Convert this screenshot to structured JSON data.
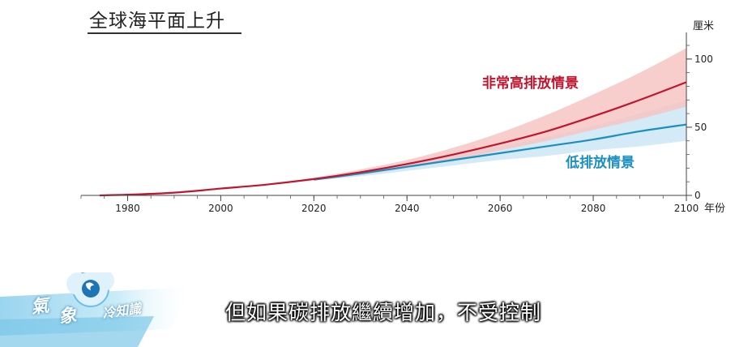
{
  "chart_data": {
    "type": "line",
    "title": "全球海平面上升",
    "ylabel": "厘米",
    "xlabel": "年份",
    "xlim": [
      1970,
      2100
    ],
    "ylim": [
      0,
      110
    ],
    "x_ticks": [
      1980,
      2000,
      2020,
      2040,
      2060,
      2080,
      2100
    ],
    "x_tick_labels": [
      "1980",
      "2000",
      "2020",
      "2040",
      "2060",
      "2080",
      "2100"
    ],
    "y_ticks": [
      0,
      50,
      100
    ],
    "y_tick_labels": [
      "0",
      "50",
      "100"
    ],
    "grid": false,
    "series": [
      {
        "name": "非常高排放情景",
        "color": "#c0152f",
        "band_color": "#f6c5c3",
        "x": [
          1974,
          1980,
          1990,
          2000,
          2010,
          2020,
          2030,
          2040,
          2050,
          2060,
          2070,
          2080,
          2090,
          2100
        ],
        "y": [
          0,
          0.5,
          2,
          5,
          8,
          12,
          17,
          23,
          30,
          38,
          47,
          58,
          70,
          83
        ],
        "upper": [
          0,
          0.5,
          2,
          5,
          8,
          13,
          19,
          26,
          35,
          46,
          59,
          74,
          90,
          108
        ],
        "lower": [
          0,
          0.5,
          2,
          5,
          8,
          11,
          15,
          20,
          26,
          33,
          40,
          48,
          56,
          65
        ]
      },
      {
        "name": "低排放情景",
        "color": "#1a8fc0",
        "band_color": "#cde6f4",
        "x": [
          2020,
          2030,
          2040,
          2050,
          2060,
          2070,
          2080,
          2090,
          2100
        ],
        "y": [
          11.5,
          16,
          21,
          26,
          31,
          36,
          41,
          47,
          52
        ],
        "upper": [
          12,
          17,
          23,
          29,
          36,
          43,
          51,
          60,
          70
        ],
        "lower": [
          11,
          14,
          18,
          22,
          26,
          29,
          33,
          36,
          40
        ]
      }
    ]
  },
  "overlay": {
    "caption": "但如果碳排放繼續增加，不受控制",
    "logo": {
      "part1": "氣",
      "part2": "象",
      "part3": "冷知識"
    }
  }
}
